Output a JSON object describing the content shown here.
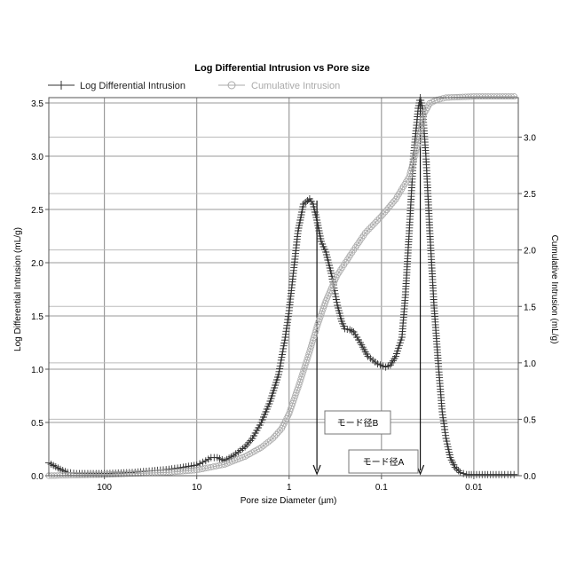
{
  "chart_data": {
    "type": "line",
    "title": "Log Differential Intrusion vs Pore size",
    "xlabel": "Pore size Diameter (µm)",
    "ylabel_left": "Log Differential Intrusion (mL/g)",
    "ylabel_right": "Cumulative Intrusion (mL/g)",
    "x_scale": "log-reversed",
    "xlim": [
      400,
      0.0033
    ],
    "ylim_left": [
      0,
      3.55
    ],
    "ylim_right": [
      0,
      3.35
    ],
    "grid": true,
    "legend_position": "top-left",
    "x_ticks": [
      {
        "value": 100,
        "label": "100"
      },
      {
        "value": 10,
        "label": "10"
      },
      {
        "value": 1,
        "label": "1"
      },
      {
        "value": 0.1,
        "label": "0.1"
      },
      {
        "value": 0.01,
        "label": "0.01"
      }
    ],
    "y_ticks_left": [
      {
        "value": 0,
        "label": "0.0"
      },
      {
        "value": 0.5,
        "label": "0.5"
      },
      {
        "value": 1.0,
        "label": "1.0"
      },
      {
        "value": 1.5,
        "label": "1.5"
      },
      {
        "value": 2.0,
        "label": "2.0"
      },
      {
        "value": 2.5,
        "label": "2.5"
      },
      {
        "value": 3.0,
        "label": "3.0"
      },
      {
        "value": 3.5,
        "label": "3.5"
      }
    ],
    "y_ticks_right": [
      {
        "value": 0,
        "label": "0.0"
      },
      {
        "value": 0.5,
        "label": "0.5"
      },
      {
        "value": 1.0,
        "label": "1.0"
      },
      {
        "value": 1.5,
        "label": "1.5"
      },
      {
        "value": 2.0,
        "label": "2.0"
      },
      {
        "value": 2.5,
        "label": "2.5"
      },
      {
        "value": 3.0,
        "label": "3.0"
      }
    ],
    "series": [
      {
        "name": "Log Differential Intrusion",
        "axis": "left",
        "color": "#333333",
        "marker": "plus",
        "points": [
          [
            400,
            0.12
          ],
          [
            300,
            0.06
          ],
          [
            250,
            0.03
          ],
          [
            200,
            0.02
          ],
          [
            100,
            0.02
          ],
          [
            50,
            0.03
          ],
          [
            20,
            0.06
          ],
          [
            14,
            0.08
          ],
          [
            10,
            0.1
          ],
          [
            8,
            0.14
          ],
          [
            7,
            0.17
          ],
          [
            6,
            0.17
          ],
          [
            5,
            0.14
          ],
          [
            4,
            0.19
          ],
          [
            3,
            0.27
          ],
          [
            2.5,
            0.35
          ],
          [
            2,
            0.5
          ],
          [
            1.6,
            0.7
          ],
          [
            1.3,
            0.95
          ],
          [
            1.1,
            1.3
          ],
          [
            1.0,
            1.55
          ],
          [
            0.9,
            1.9
          ],
          [
            0.8,
            2.3
          ],
          [
            0.7,
            2.55
          ],
          [
            0.6,
            2.6
          ],
          [
            0.55,
            2.55
          ],
          [
            0.5,
            2.4
          ],
          [
            0.45,
            2.2
          ],
          [
            0.4,
            2.1
          ],
          [
            0.35,
            1.9
          ],
          [
            0.3,
            1.6
          ],
          [
            0.27,
            1.45
          ],
          [
            0.25,
            1.38
          ],
          [
            0.22,
            1.37
          ],
          [
            0.2,
            1.35
          ],
          [
            0.17,
            1.25
          ],
          [
            0.14,
            1.12
          ],
          [
            0.11,
            1.05
          ],
          [
            0.09,
            1.02
          ],
          [
            0.08,
            1.04
          ],
          [
            0.07,
            1.12
          ],
          [
            0.06,
            1.3
          ],
          [
            0.055,
            1.7
          ],
          [
            0.05,
            2.3
          ],
          [
            0.045,
            3.0
          ],
          [
            0.04,
            3.45
          ],
          [
            0.038,
            3.55
          ],
          [
            0.036,
            3.45
          ],
          [
            0.033,
            3.0
          ],
          [
            0.03,
            2.3
          ],
          [
            0.027,
            1.6
          ],
          [
            0.024,
            1.0
          ],
          [
            0.022,
            0.6
          ],
          [
            0.02,
            0.35
          ],
          [
            0.018,
            0.17
          ],
          [
            0.016,
            0.08
          ],
          [
            0.014,
            0.03
          ],
          [
            0.012,
            0.01
          ],
          [
            0.01,
            0.01
          ],
          [
            0.005,
            0.01
          ],
          [
            0.0034,
            0.01
          ]
        ]
      },
      {
        "name": "Cumulative Intrusion",
        "axis": "right",
        "color": "#aaaaaa",
        "marker": "circle",
        "points": [
          [
            400,
            0.0
          ],
          [
            100,
            0.01
          ],
          [
            20,
            0.03
          ],
          [
            10,
            0.05
          ],
          [
            5,
            0.1
          ],
          [
            3,
            0.17
          ],
          [
            2,
            0.25
          ],
          [
            1.5,
            0.33
          ],
          [
            1.2,
            0.42
          ],
          [
            1.0,
            0.55
          ],
          [
            0.8,
            0.78
          ],
          [
            0.6,
            1.1
          ],
          [
            0.5,
            1.32
          ],
          [
            0.4,
            1.55
          ],
          [
            0.3,
            1.78
          ],
          [
            0.2,
            2.0
          ],
          [
            0.15,
            2.15
          ],
          [
            0.1,
            2.3
          ],
          [
            0.07,
            2.45
          ],
          [
            0.05,
            2.65
          ],
          [
            0.04,
            2.95
          ],
          [
            0.035,
            3.2
          ],
          [
            0.03,
            3.3
          ],
          [
            0.025,
            3.33
          ],
          [
            0.02,
            3.35
          ],
          [
            0.01,
            3.36
          ],
          [
            0.0034,
            3.36
          ]
        ]
      }
    ],
    "annotations": [
      {
        "text": "モード径B",
        "x": 0.5
      },
      {
        "text": "モード径A",
        "x": 0.038
      }
    ]
  }
}
